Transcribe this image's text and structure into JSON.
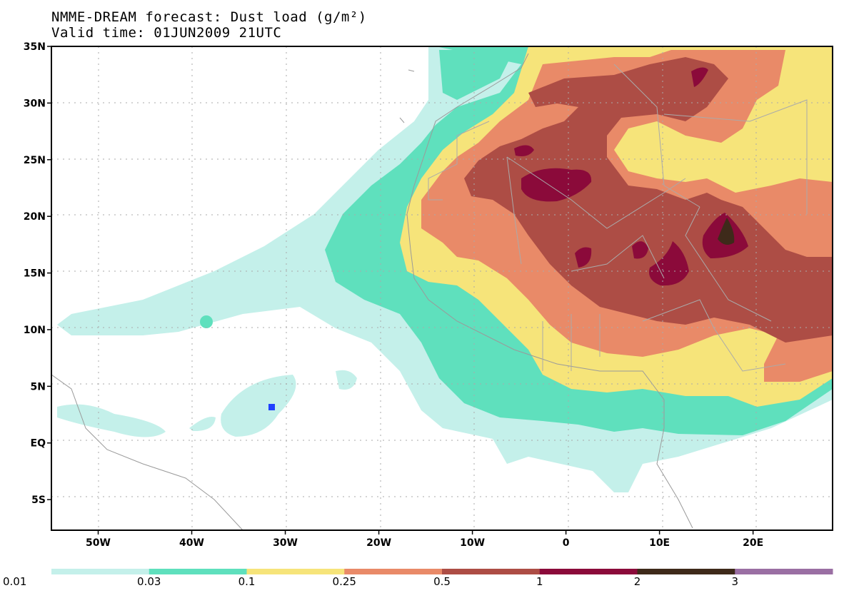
{
  "title": {
    "line1": "NMME-DREAM forecast: Dust load (g/m²)",
    "line2": "Valid time: 01JUN2009 21UTC"
  },
  "axes": {
    "lat_labels": [
      "35N",
      "30N",
      "25N",
      "20N",
      "15N",
      "10N",
      "5N",
      "EQ",
      "5S"
    ],
    "lat_values": [
      35,
      30,
      25,
      20,
      15,
      10,
      5,
      0,
      -5
    ],
    "lon_labels": [
      "50W",
      "40W",
      "30W",
      "20W",
      "10W",
      "0",
      "10E",
      "20E"
    ],
    "lon_values": [
      -50,
      -40,
      -30,
      -20,
      -10,
      0,
      10,
      20
    ],
    "lat_range": [
      -7.7,
      35
    ],
    "lon_range": [
      -55,
      28.5
    ]
  },
  "colorbar": {
    "labels": [
      "0.01",
      "0.03",
      "0.1",
      "0.25",
      "0.5",
      "1",
      "2",
      "3"
    ],
    "colors": [
      "#c4f0ea",
      "#5fe0bd",
      "#f6e47a",
      "#e98a68",
      "#ad4d45",
      "#8b0a3a",
      "#3e2a1a",
      "#9a6fa3"
    ]
  },
  "station_marker": {
    "color": "#2040ff"
  }
}
